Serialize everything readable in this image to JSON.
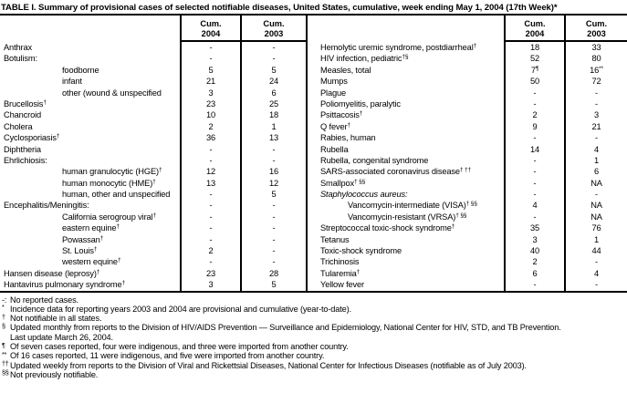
{
  "title": "TABLE I. Summary of provisional cases of selected notifiable diseases, United States, cumulative, week ending May 1, 2004 (17th Week)*",
  "colors": {
    "text": "#000000",
    "background": "#ffffff",
    "rule": "#000000"
  },
  "table": {
    "columns": {
      "cum": "Cum.",
      "y2004": "2004",
      "y2003": "2003"
    },
    "left_rows": [
      {
        "label": "Anthrax",
        "v2004": "-",
        "v2003": "-"
      },
      {
        "label": "Botulism:",
        "v2004": "-",
        "v2003": "-"
      },
      {
        "label": "foodborne",
        "indent": true,
        "v2004": "5",
        "v2003": "5"
      },
      {
        "label": "infant",
        "indent": true,
        "v2004": "21",
        "v2003": "24"
      },
      {
        "label": "other (wound & unspecified",
        "indent": true,
        "v2004": "3",
        "v2003": "6"
      },
      {
        "label": "Brucellosis",
        "sup": "†",
        "v2004": "23",
        "v2003": "25"
      },
      {
        "label": "Chancroid",
        "v2004": "10",
        "v2003": "18"
      },
      {
        "label": "Cholera",
        "v2004": "2",
        "v2003": "1"
      },
      {
        "label": "Cyclosporiasis",
        "sup": "†",
        "v2004": "36",
        "v2003": "13"
      },
      {
        "label": "Diphtheria",
        "v2004": "-",
        "v2003": "-"
      },
      {
        "label": "Ehrlichiosis:",
        "v2004": "-",
        "v2003": "-"
      },
      {
        "label": "human granulocytic (HGE)",
        "sup": "†",
        "indent": true,
        "v2004": "12",
        "v2003": "16"
      },
      {
        "label": "human monocytic (HME)",
        "sup": "†",
        "indent": true,
        "v2004": "13",
        "v2003": "12"
      },
      {
        "label": "human, other and unspecified",
        "indent": true,
        "v2004": "-",
        "v2003": "5"
      },
      {
        "label": "Encephalitis/Meningitis:",
        "v2004": "-",
        "v2003": "-"
      },
      {
        "label": "California serogroup viral",
        "sup": "†",
        "indent": true,
        "v2004": "-",
        "v2003": "-"
      },
      {
        "label": "eastern equine",
        "sup": "†",
        "indent": true,
        "v2004": "-",
        "v2003": "-"
      },
      {
        "label": "Powassan",
        "sup": "†",
        "indent": true,
        "v2004": "-",
        "v2003": "-"
      },
      {
        "label": "St. Louis",
        "sup": "†",
        "indent": true,
        "v2004": "2",
        "v2003": "-"
      },
      {
        "label": "western equine",
        "sup": "†",
        "indent": true,
        "v2004": "-",
        "v2003": "-"
      },
      {
        "label": "Hansen disease (leprosy)",
        "sup": "†",
        "v2004": "23",
        "v2003": "28"
      },
      {
        "label": "Hantavirus pulmonary syndrome",
        "sup": "†",
        "v2004": "3",
        "v2003": "5"
      }
    ],
    "right_rows": [
      {
        "label": "Hemolytic uremic syndrome, postdiarrheal",
        "sup": "†",
        "v2004": "18",
        "v2003": "33"
      },
      {
        "label": "HIV infection, pediatric",
        "sup": "†§",
        "v2004": "52",
        "v2003": "80"
      },
      {
        "label": "Measles, total",
        "v2004": "7",
        "s2004": "¶",
        "v2003": "16",
        "s2003": "**"
      },
      {
        "label": "Mumps",
        "v2004": "50",
        "v2003": "72"
      },
      {
        "label": "Plague",
        "v2004": "-",
        "v2003": "-"
      },
      {
        "label": "Poliomyelitis, paralytic",
        "v2004": "-",
        "v2003": "-"
      },
      {
        "label": "Psittacosis",
        "sup": "†",
        "v2004": "2",
        "v2003": "3"
      },
      {
        "label": "Q fever",
        "sup": "†",
        "v2004": "9",
        "v2003": "21"
      },
      {
        "label": "Rabies, human",
        "v2004": "-",
        "v2003": "-"
      },
      {
        "label": "Rubella",
        "v2004": "14",
        "v2003": "4"
      },
      {
        "label": "Rubella, congenital syndrome",
        "v2004": "-",
        "v2003": "1"
      },
      {
        "label": "SARS-associated coronavirus disease",
        "sup": "† ††",
        "v2004": "-",
        "v2003": "6"
      },
      {
        "label": "Smallpox",
        "sup": "† §§",
        "v2004": "-",
        "v2003": "NA"
      },
      {
        "label": "Staphylococcus aureus:",
        "italic": true,
        "v2004": "-",
        "v2003": "-"
      },
      {
        "label": "Vancomycin-intermediate (VISA)",
        "sup": "† §§",
        "indent": true,
        "v2004": "4",
        "v2003": "NA"
      },
      {
        "label": "Vancomycin-resistant (VRSA)",
        "sup": "† §§",
        "indent": true,
        "v2004": "-",
        "v2003": "NA"
      },
      {
        "label": "Streptococcal toxic-shock syndrome",
        "sup": "†",
        "v2004": "35",
        "v2003": "76"
      },
      {
        "label": "Tetanus",
        "v2004": "3",
        "v2003": "1"
      },
      {
        "label": "Toxic-shock syndrome",
        "v2004": "40",
        "v2003": "44"
      },
      {
        "label": "Trichinosis",
        "v2004": "2",
        "v2003": "-"
      },
      {
        "label": "Tularemia",
        "sup": "†",
        "v2004": "6",
        "v2003": "4"
      },
      {
        "label": "Yellow fever",
        "v2004": "-",
        "v2003": "-"
      }
    ]
  },
  "footnotes": [
    {
      "marker": "-:",
      "flat": true,
      "lines": [
        "No reported cases."
      ]
    },
    {
      "marker": "*",
      "lines": [
        "Incidence data for reporting years 2003 and 2004 are provisional and cumulative (year-to-date)."
      ]
    },
    {
      "marker": "†",
      "lines": [
        "Not notifiable in all states."
      ]
    },
    {
      "marker": "§",
      "lines": [
        "Updated monthly from reports to the Division of HIV/AIDS Prevention — Surveillance and Epidemiology, National Center for HIV, STD, and TB Prevention.",
        "Last update March 26, 2004."
      ]
    },
    {
      "marker": "¶",
      "lines": [
        "Of seven cases reported, four were indigenous, and three were imported from another country."
      ]
    },
    {
      "marker": "**",
      "lines": [
        "Of 16 cases reported, 11 were indigenous, and five were imported from another country."
      ]
    },
    {
      "marker": "††",
      "lines": [
        "Updated weekly from reports to the Division of Viral and Rickettsial Diseases, National Center for Infectious Diseases (notifiable as of July 2003)."
      ]
    },
    {
      "marker": "§§",
      "lines": [
        "Not previously notifiable."
      ]
    }
  ]
}
